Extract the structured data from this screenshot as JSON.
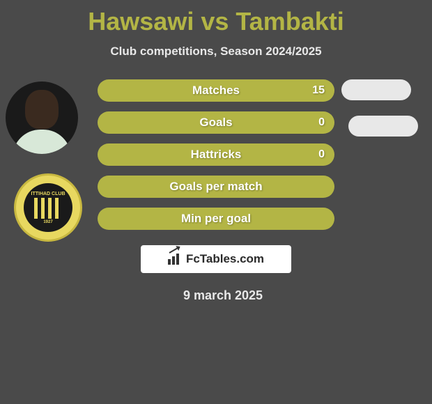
{
  "header": {
    "title": "Hawsawi vs Tambakti",
    "subtitle": "Club competitions, Season 2024/2025"
  },
  "colors": {
    "background": "#4a4a4a",
    "title_color": "#b3b545",
    "subtitle_color": "#e8e8e8",
    "pill_color": "#b3b545",
    "pill_text": "#ffffff",
    "right_pill": "#e8e8e8",
    "badge_yellow": "#e8d860",
    "badge_dark": "#1a1a1a"
  },
  "stats": [
    {
      "label": "Matches",
      "value_left": "15"
    },
    {
      "label": "Goals",
      "value_left": "0"
    },
    {
      "label": "Hattricks",
      "value_left": "0"
    },
    {
      "label": "Goals per match",
      "value_left": ""
    },
    {
      "label": "Min per goal",
      "value_left": ""
    }
  ],
  "club_badge": {
    "top_text": "ITTIHAD CLUB",
    "bottom_text": "1927"
  },
  "footer": {
    "brand": "FcTables.com",
    "date": "9 march 2025"
  }
}
